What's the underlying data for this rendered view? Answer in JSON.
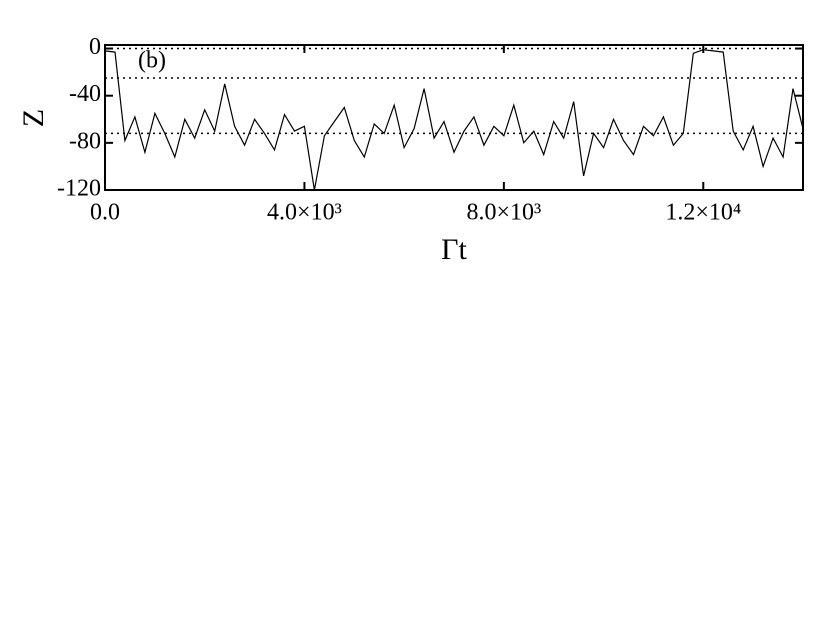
{
  "chart_data": {
    "type": "line",
    "annotation": "(b)",
    "x_label": "Γt",
    "y_label": "Z",
    "x": [
      0,
      200,
      400,
      600,
      800,
      1000,
      1200,
      1400,
      1600,
      1800,
      2000,
      2200,
      2400,
      2600,
      2800,
      3000,
      3200,
      3400,
      3600,
      3800,
      4000,
      4200,
      4400,
      4600,
      4800,
      5000,
      5200,
      5400,
      5600,
      5800,
      6000,
      6200,
      6400,
      6600,
      6800,
      7000,
      7200,
      7400,
      7600,
      7800,
      8000,
      8200,
      8400,
      8600,
      8800,
      9000,
      9200,
      9400,
      9600,
      9800,
      10000,
      10200,
      10400,
      10600,
      10800,
      11000,
      11200,
      11400,
      11600,
      11800,
      12000,
      12200,
      12400,
      12600,
      12800,
      13000,
      13200,
      13400,
      13600,
      13800,
      14000
    ],
    "series": [
      {
        "color": "#000000",
        "values": [
          -2,
          -3,
          -78,
          -58,
          -88,
          -55,
          -72,
          -92,
          -60,
          -76,
          -52,
          -70,
          -30,
          -66,
          -82,
          -60,
          -72,
          -86,
          -56,
          -70,
          -66,
          -120,
          -74,
          -62,
          -50,
          -78,
          -92,
          -64,
          -72,
          -48,
          -84,
          -68,
          -34,
          -76,
          -62,
          -88,
          -70,
          -58,
          -82,
          -66,
          -74,
          -48,
          -80,
          -70,
          -90,
          -62,
          -76,
          -45,
          -108,
          -72,
          -84,
          -60,
          -78,
          -90,
          -66,
          -74,
          -58,
          -82,
          -72,
          -4,
          -1,
          -2,
          -3,
          -70,
          -86,
          -66,
          -100,
          -76,
          -92,
          -34,
          -68
        ]
      }
    ],
    "reference_lines": [
      0,
      -25,
      -72
    ],
    "xlim": [
      0,
      14000
    ],
    "ylim": [
      -120,
      3
    ],
    "xticks": [
      {
        "value": 0,
        "label": "0.0"
      },
      {
        "value": 4000,
        "label": "4.0×10³"
      },
      {
        "value": 8000,
        "label": "8.0×10³"
      },
      {
        "value": 12000,
        "label": "1.2×10⁴"
      }
    ],
    "yticks": [
      0,
      -40,
      -80,
      -120
    ]
  }
}
